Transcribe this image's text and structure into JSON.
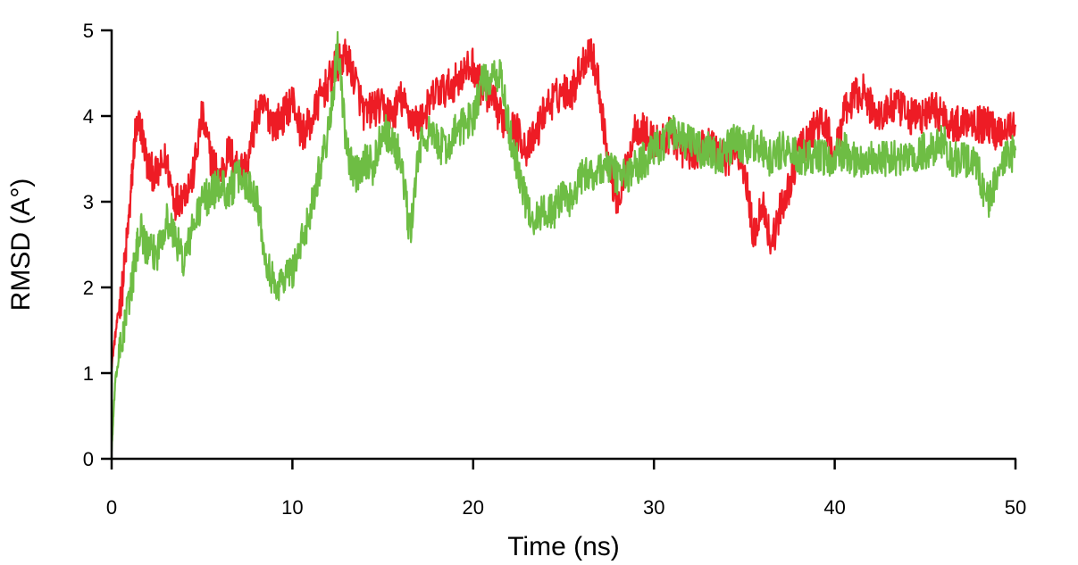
{
  "chart_data": {
    "type": "line",
    "title": "",
    "xlabel": "Time (ns)",
    "ylabel": "RMSD (A°)",
    "xlim": [
      0,
      50
    ],
    "ylim": [
      0,
      5
    ],
    "grid": false,
    "legend": "none",
    "x_ticks": [
      "0",
      "10",
      "20",
      "30",
      "40",
      "50"
    ],
    "y_ticks": [
      "0",
      "1",
      "2",
      "3",
      "4",
      "5"
    ],
    "series": [
      {
        "color": "#ee1c25",
        "x": [
          0,
          0.3,
          0.6,
          1.0,
          1.3,
          1.6,
          2.0,
          2.5,
          3.0,
          3.5,
          4.0,
          4.5,
          5.0,
          5.5,
          6.0,
          6.5,
          7.0,
          7.5,
          8.0,
          8.5,
          9.0,
          9.5,
          10.0,
          10.5,
          11.0,
          11.5,
          12.0,
          12.5,
          13.0,
          13.5,
          14.0,
          14.5,
          15.0,
          15.5,
          16.0,
          16.5,
          17.0,
          17.5,
          18.0,
          18.5,
          19.0,
          19.5,
          20.0,
          20.5,
          21.0,
          21.5,
          22.0,
          22.5,
          23.0,
          23.5,
          24.0,
          24.5,
          25.0,
          25.5,
          26.0,
          26.5,
          27.0,
          27.5,
          28.0,
          28.5,
          29.0,
          29.5,
          30.0,
          30.5,
          31.0,
          31.5,
          32.0,
          32.5,
          33.0,
          33.5,
          34.0,
          34.5,
          35.0,
          35.5,
          36.0,
          36.5,
          37.0,
          37.5,
          38.0,
          38.5,
          39.0,
          39.5,
          40.0,
          40.5,
          41.0,
          41.5,
          42.0,
          42.5,
          43.0,
          43.5,
          44.0,
          44.5,
          45.0,
          45.5,
          46.0,
          46.5,
          47.0,
          47.5,
          48.0,
          48.5,
          49.0,
          49.5,
          50.0
        ],
        "values": [
          1.1,
          1.6,
          2.0,
          2.9,
          3.8,
          3.9,
          3.4,
          3.3,
          3.5,
          3.0,
          3.1,
          3.3,
          4.0,
          3.5,
          3.3,
          3.6,
          3.4,
          3.4,
          4.0,
          4.1,
          3.9,
          4.0,
          4.2,
          3.8,
          3.9,
          4.2,
          4.4,
          4.6,
          4.7,
          4.4,
          4.0,
          4.1,
          4.1,
          4.0,
          4.2,
          4.0,
          3.9,
          4.1,
          4.3,
          4.3,
          4.4,
          4.5,
          4.6,
          4.3,
          4.2,
          4.0,
          3.9,
          3.8,
          3.6,
          3.8,
          4.1,
          4.2,
          4.3,
          4.3,
          4.6,
          4.8,
          4.3,
          3.4,
          3.0,
          3.4,
          3.9,
          3.8,
          3.7,
          3.7,
          3.8,
          3.6,
          3.6,
          3.6,
          3.7,
          3.6,
          3.5,
          3.6,
          3.4,
          2.6,
          3.0,
          2.5,
          2.9,
          3.2,
          3.6,
          3.7,
          3.9,
          3.9,
          3.5,
          4.0,
          4.2,
          4.3,
          4.1,
          4.0,
          4.1,
          4.1,
          4.0,
          4.0,
          4.0,
          4.1,
          4.0,
          3.9,
          3.9,
          4.0,
          3.9,
          3.9,
          3.8,
          3.9,
          3.9
        ]
      },
      {
        "color": "#6ebd44",
        "x": [
          0,
          0.2,
          0.5,
          1.0,
          1.3,
          1.6,
          2.0,
          2.5,
          3.0,
          3.5,
          4.0,
          4.5,
          5.0,
          5.5,
          6.0,
          6.5,
          7.0,
          7.5,
          8.0,
          8.5,
          9.0,
          9.5,
          10.0,
          10.5,
          11.0,
          11.5,
          12.0,
          12.5,
          13.0,
          13.5,
          14.0,
          14.5,
          15.0,
          15.5,
          16.0,
          16.5,
          17.0,
          17.5,
          18.0,
          18.5,
          19.0,
          19.5,
          20.0,
          20.5,
          21.0,
          21.5,
          22.0,
          22.5,
          23.0,
          23.5,
          24.0,
          24.5,
          25.0,
          25.5,
          26.0,
          26.5,
          27.0,
          27.5,
          28.0,
          28.5,
          29.0,
          29.5,
          30.0,
          30.5,
          31.0,
          31.5,
          32.0,
          32.5,
          33.0,
          33.5,
          34.0,
          34.5,
          35.0,
          35.5,
          36.0,
          36.5,
          37.0,
          37.5,
          38.0,
          38.5,
          39.0,
          39.5,
          40.0,
          40.5,
          41.0,
          41.5,
          42.0,
          42.5,
          43.0,
          43.5,
          44.0,
          44.5,
          45.0,
          45.5,
          46.0,
          46.5,
          47.0,
          47.5,
          48.0,
          48.5,
          49.0,
          49.5,
          50.0
        ],
        "values": [
          0.1,
          0.9,
          1.3,
          1.9,
          2.3,
          2.7,
          2.4,
          2.4,
          2.8,
          2.6,
          2.3,
          2.7,
          3.0,
          3.1,
          3.2,
          3.1,
          3.3,
          3.2,
          3.1,
          2.4,
          2.0,
          2.1,
          2.2,
          2.5,
          2.9,
          3.4,
          3.8,
          4.8,
          3.6,
          3.3,
          3.5,
          3.4,
          3.9,
          3.7,
          3.5,
          2.6,
          3.6,
          3.8,
          3.7,
          3.6,
          3.8,
          3.9,
          4.0,
          4.4,
          4.4,
          4.5,
          3.8,
          3.4,
          2.9,
          2.8,
          2.9,
          2.9,
          3.1,
          3.0,
          3.3,
          3.3,
          3.4,
          3.4,
          3.3,
          3.3,
          3.4,
          3.5,
          3.6,
          3.7,
          3.8,
          3.7,
          3.7,
          3.6,
          3.6,
          3.5,
          3.6,
          3.7,
          3.6,
          3.7,
          3.6,
          3.5,
          3.6,
          3.6,
          3.5,
          3.5,
          3.5,
          3.5,
          3.5,
          3.6,
          3.5,
          3.5,
          3.5,
          3.5,
          3.5,
          3.5,
          3.5,
          3.5,
          3.6,
          3.6,
          3.7,
          3.5,
          3.5,
          3.5,
          3.3,
          3.0,
          3.3,
          3.5,
          3.6
        ]
      }
    ]
  }
}
